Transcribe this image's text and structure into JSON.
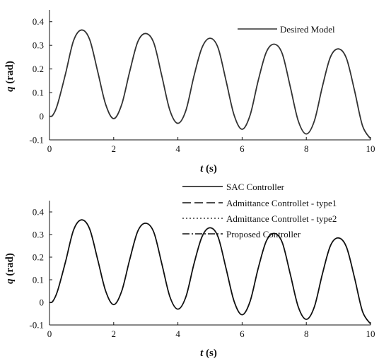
{
  "chart_data": [
    {
      "type": "line",
      "title": "",
      "xlabel_var": "t",
      "xlabel_unit": "(s)",
      "ylabel_var": "q",
      "ylabel_unit": "(rad)",
      "xlim": [
        0,
        10
      ],
      "ylim": [
        -0.1,
        0.45
      ],
      "xticks": [
        0,
        2,
        4,
        6,
        8,
        10
      ],
      "yticks": [
        -0.1,
        0,
        0.1,
        0.2,
        0.3,
        0.4
      ],
      "ytick_labels": [
        "-0.1",
        "0",
        "0.1",
        "0.2",
        "0.3",
        "0.4"
      ],
      "grid": false,
      "legend_position": "top-right",
      "series": [
        {
          "name": "Desired Model",
          "style": "solid",
          "color": "#333333",
          "x": [
            0,
            0.1,
            0.25,
            0.5,
            0.75,
            1.0,
            1.25,
            1.5,
            1.75,
            2.0,
            2.25,
            2.5,
            2.75,
            3.0,
            3.25,
            3.5,
            3.75,
            4.0,
            4.25,
            4.5,
            4.75,
            5.0,
            5.25,
            5.5,
            5.75,
            6.0,
            6.25,
            6.5,
            6.75,
            7.0,
            7.25,
            7.5,
            7.75,
            8.0,
            8.25,
            8.5,
            8.75,
            9.0,
            9.25,
            9.5,
            9.75,
            10.0
          ],
          "y": [
            0.0,
            0.004,
            0.05,
            0.18,
            0.32,
            0.365,
            0.325,
            0.19,
            0.05,
            -0.01,
            0.05,
            0.19,
            0.315,
            0.35,
            0.31,
            0.17,
            0.025,
            -0.03,
            0.025,
            0.17,
            0.29,
            0.33,
            0.29,
            0.15,
            0.005,
            -0.055,
            0.005,
            0.15,
            0.27,
            0.305,
            0.265,
            0.125,
            -0.02,
            -0.075,
            -0.02,
            0.125,
            0.25,
            0.285,
            0.245,
            0.11,
            -0.04,
            -0.095
          ]
        }
      ]
    },
    {
      "type": "line",
      "title": "",
      "xlabel_var": "t",
      "xlabel_unit": "(s)",
      "ylabel_var": "q",
      "ylabel_unit": "(rad)",
      "xlim": [
        0,
        10
      ],
      "ylim": [
        -0.1,
        0.45
      ],
      "xticks": [
        0,
        2,
        4,
        6,
        8,
        10
      ],
      "yticks": [
        -0.1,
        0,
        0.1,
        0.2,
        0.3,
        0.4
      ],
      "ytick_labels": [
        "-0.1",
        "0",
        "0.1",
        "0.2",
        "0.3",
        "0.4"
      ],
      "grid": false,
      "legend_position": "top-right",
      "series": [
        {
          "name": "SAC Controller",
          "style": "solid",
          "color": "#111111",
          "x": [
            0,
            0.1,
            0.25,
            0.5,
            0.75,
            1.0,
            1.25,
            1.5,
            1.75,
            2.0,
            2.25,
            2.5,
            2.75,
            3.0,
            3.25,
            3.5,
            3.75,
            4.0,
            4.25,
            4.5,
            4.75,
            5.0,
            5.25,
            5.5,
            5.75,
            6.0,
            6.25,
            6.5,
            6.75,
            7.0,
            7.25,
            7.5,
            7.75,
            8.0,
            8.25,
            8.5,
            8.75,
            9.0,
            9.25,
            9.5,
            9.75,
            10.0
          ],
          "y": [
            0.0,
            0.004,
            0.05,
            0.18,
            0.32,
            0.365,
            0.325,
            0.19,
            0.05,
            -0.01,
            0.05,
            0.19,
            0.315,
            0.35,
            0.31,
            0.17,
            0.025,
            -0.03,
            0.025,
            0.17,
            0.29,
            0.33,
            0.29,
            0.15,
            0.005,
            -0.055,
            0.005,
            0.15,
            0.27,
            0.305,
            0.265,
            0.125,
            -0.02,
            -0.075,
            -0.02,
            0.125,
            0.25,
            0.285,
            0.245,
            0.11,
            -0.04,
            -0.095
          ]
        },
        {
          "name": "Admittance Controllet - type1",
          "style": "dashed",
          "color": "#111111",
          "x": [],
          "y": []
        },
        {
          "name": "Admittance Controllet - type2",
          "style": "dotted",
          "color": "#111111",
          "x": [],
          "y": []
        },
        {
          "name": "Proposed Controller",
          "style": "dashdot",
          "color": "#111111",
          "x": [],
          "y": []
        }
      ]
    }
  ]
}
